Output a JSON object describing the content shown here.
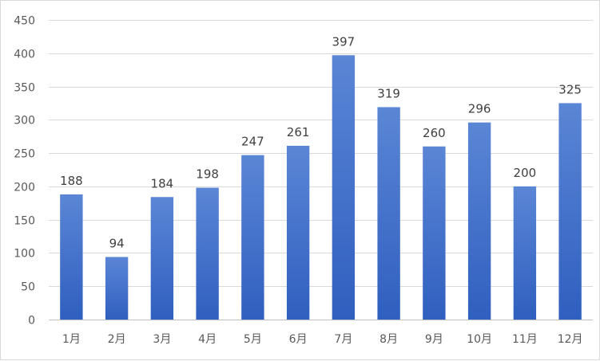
{
  "chart_data": {
    "type": "bar",
    "title": "",
    "xlabel": "",
    "ylabel": "",
    "categories": [
      "1月",
      "2月",
      "3月",
      "4月",
      "5月",
      "6月",
      "7月",
      "8月",
      "9月",
      "10月",
      "11月",
      "12月"
    ],
    "values": [
      188,
      94,
      184,
      198,
      247,
      261,
      397,
      319,
      260,
      296,
      200,
      325
    ],
    "ylim": [
      0,
      450
    ],
    "yticks": [
      0,
      50,
      100,
      150,
      200,
      250,
      300,
      350,
      400,
      450
    ],
    "grid": true,
    "legend": "none",
    "data_labels": true,
    "bar_color_top": "#5b86d6",
    "bar_color_bottom": "#2f5fbf"
  }
}
